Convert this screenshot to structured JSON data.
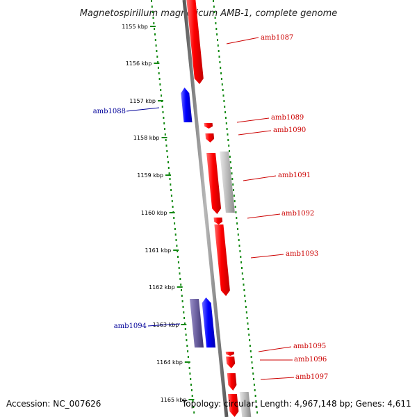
{
  "map": {
    "title": "Magnetospirillum magneticum AMB-1, complete genome",
    "accession_text": "Accession: NC_007626",
    "summary_text": "Topology: circular; Length: 4,967,148 bp; Genes: 4,611",
    "kbp_ticks": [
      "1155 kbp",
      "1156 kbp",
      "1157 kbp",
      "1158 kbp",
      "1159 kbp",
      "1160 kbp",
      "1161 kbp",
      "1162 kbp",
      "1163 kbp",
      "1164 kbp",
      "1165 kbp"
    ],
    "colors": {
      "forward_gene": "#ff0000",
      "reverse_gene": "#0000ff",
      "forward_label": "#cc0000",
      "reverse_label": "#000099",
      "other_feature": "#bbbbbb",
      "reverse_alt_feature": "#6a5f9e",
      "backbone": "#888888",
      "tick_dots": "#118811"
    },
    "gene_labels": [
      {
        "text": "amb1087",
        "strand": "forward"
      },
      {
        "text": "amb1088",
        "strand": "reverse"
      },
      {
        "text": "amb1089",
        "strand": "forward"
      },
      {
        "text": "amb1090",
        "strand": "forward"
      },
      {
        "text": "amb1091",
        "strand": "forward"
      },
      {
        "text": "amb1092",
        "strand": "forward"
      },
      {
        "text": "amb1093",
        "strand": "forward"
      },
      {
        "text": "amb1094",
        "strand": "reverse"
      },
      {
        "text": "amb1095",
        "strand": "forward"
      },
      {
        "text": "amb1096",
        "strand": "forward"
      },
      {
        "text": "amb1097",
        "strand": "forward"
      }
    ]
  }
}
